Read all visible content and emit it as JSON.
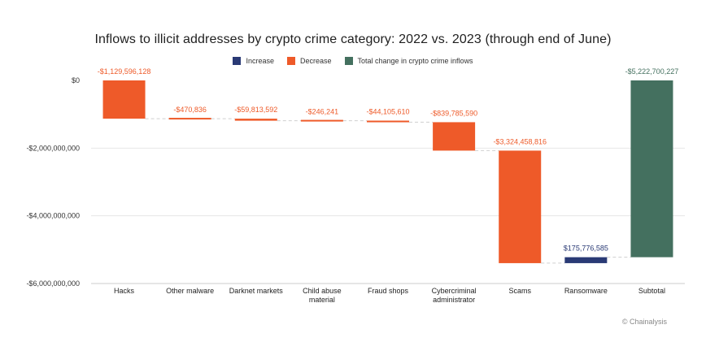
{
  "chart_data": {
    "type": "waterfall",
    "title": "Inflows to illicit addresses by crypto crime category: 2022 vs. 2023 (through end of June)",
    "legend": [
      {
        "name": "Increase",
        "color": "#2a3a75"
      },
      {
        "name": "Decrease",
        "color": "#ee5a29"
      },
      {
        "name": "Total change in crypto crime inflows",
        "color": "#44705f"
      }
    ],
    "categories": [
      {
        "label": "Hacks",
        "value": -1129596128,
        "display": "-$1,129,596,128",
        "kind": "Decrease"
      },
      {
        "label": "Other malware",
        "value": -470836,
        "display": "-$470,836",
        "kind": "Decrease"
      },
      {
        "label": "Darknet markets",
        "value": -59813592,
        "display": "-$59,813,592",
        "kind": "Decrease"
      },
      {
        "label": "Child abuse material",
        "value": -246241,
        "display": "-$246,241",
        "kind": "Decrease"
      },
      {
        "label": "Fraud shops",
        "value": -44105610,
        "display": "-$44,105,610",
        "kind": "Decrease"
      },
      {
        "label": "Cybercriminal administrator",
        "value": -839785590,
        "display": "-$839,785,590",
        "kind": "Decrease"
      },
      {
        "label": "Scams",
        "value": -3324458816,
        "display": "-$3,324,458,816",
        "kind": "Decrease"
      },
      {
        "label": "Ransomware",
        "value": 175776585,
        "display": "$175,776,585",
        "kind": "Increase"
      },
      {
        "label": "Subtotal",
        "value": -5222700227,
        "display": "-$5,222,700,227",
        "kind": "Total"
      }
    ],
    "yticks": [
      {
        "value": 0,
        "label": "$0"
      },
      {
        "value": -2000000000,
        "label": "-$2,000,000,000"
      },
      {
        "value": -4000000000,
        "label": "-$4,000,000,000"
      },
      {
        "value": -6000000000,
        "label": "-$6,000,000,000"
      }
    ],
    "ylim": [
      -6000000000,
      0
    ],
    "grid": true,
    "legend_position": "top-center"
  },
  "credit": "© Chainalysis"
}
